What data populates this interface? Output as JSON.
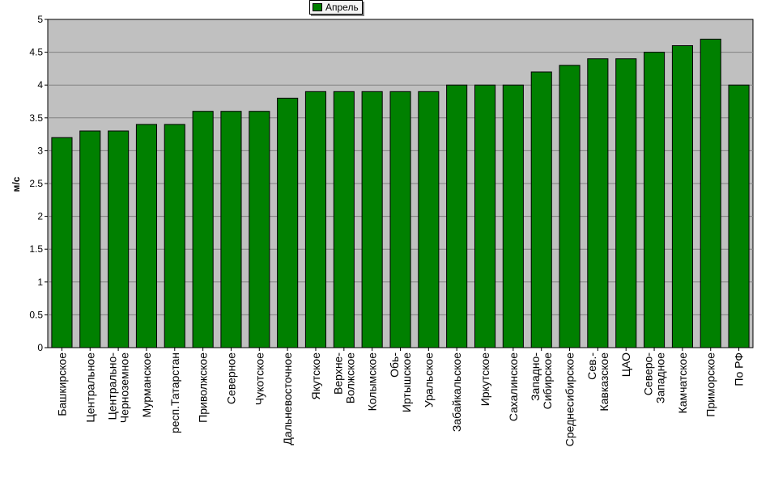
{
  "legend": {
    "label": "Апрель"
  },
  "colors": {
    "bar": "#008000",
    "plot_bg": "#c0c0c0",
    "grid": "#808080"
  },
  "chart_data": {
    "type": "bar",
    "ylabel": "м/с",
    "xlabel": "",
    "title": "",
    "ylim": [
      0,
      5
    ],
    "yticks": [
      "0",
      "0.5",
      "1",
      "1.5",
      "2",
      "2.5",
      "3",
      "3.5",
      "4",
      "4.5",
      "5"
    ],
    "grid": "horizontal",
    "legend_position": "top-center",
    "categories": [
      "Башкирское",
      "Центральное",
      "Центрально-\nЧерноземное",
      "Мурманское",
      "респ.Татарстан",
      "Приволжское",
      "Северное",
      "Чукотское",
      "Дальневосточное",
      "Якутское",
      "Верхне-\nВолжское",
      "Колымское",
      "Обь-\nИртышское",
      "Уральское",
      "Забайкальское",
      "Иркутское",
      "Сахалинское",
      "Западно-\nСибирское",
      "Среднесибирское",
      "Сев.-\nКавказское",
      "ЦАО",
      "Северо-\nЗападное",
      "Камчатское",
      "Приморское",
      "По РФ"
    ],
    "series": [
      {
        "name": "Апрель",
        "values": [
          3.2,
          3.3,
          3.3,
          3.4,
          3.4,
          3.6,
          3.6,
          3.6,
          3.8,
          3.9,
          3.9,
          3.9,
          3.9,
          3.9,
          4.0,
          4.0,
          4.0,
          4.2,
          4.3,
          4.4,
          4.4,
          4.5,
          4.6,
          4.7,
          4.0
        ]
      }
    ]
  }
}
